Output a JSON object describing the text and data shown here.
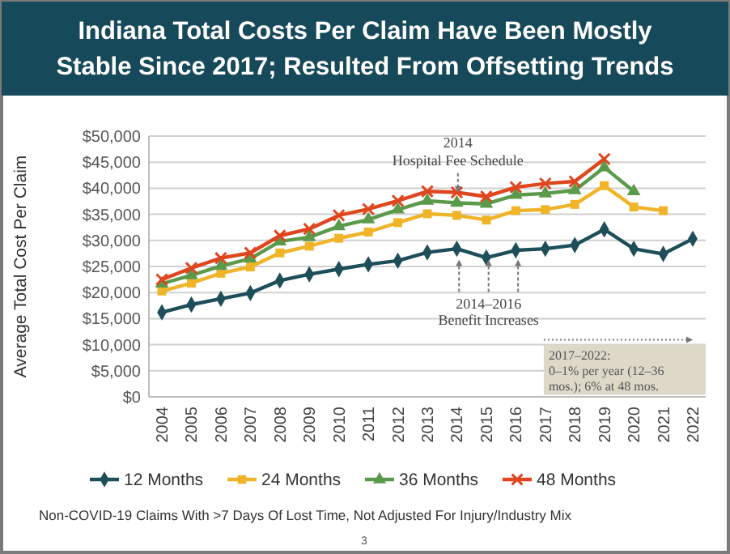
{
  "chart_data": {
    "type": "line",
    "title": "Indiana Total Costs Per Claim Have Been Mostly\nStable Since 2017; Resulted From Offsetting Trends",
    "ylabel": "Average Total Cost Per Claim",
    "categories": [
      "2004",
      "2005",
      "2006",
      "2007",
      "2008",
      "2009",
      "2010",
      "2011",
      "2012",
      "2013",
      "2014",
      "2015",
      "2016",
      "2017",
      "2018",
      "2019",
      "2020",
      "2021",
      "2022"
    ],
    "series": [
      {
        "name": "12 Months",
        "color": "#1d4e5a",
        "marker": "diamond",
        "values": [
          16200,
          17700,
          18800,
          19900,
          22300,
          23500,
          24500,
          25400,
          26100,
          27700,
          28400,
          26700,
          28100,
          28400,
          29100,
          32100,
          28400,
          27400,
          30300
        ]
      },
      {
        "name": "24 Months",
        "color": "#f0b429",
        "marker": "square",
        "values": [
          20300,
          21800,
          23700,
          24900,
          27600,
          28900,
          30400,
          31600,
          33400,
          35100,
          34800,
          33900,
          35700,
          35900,
          36900,
          40500,
          36400,
          35700,
          null
        ]
      },
      {
        "name": "36 Months",
        "color": "#5a9a4a",
        "marker": "triangle",
        "values": [
          21700,
          23300,
          25100,
          26500,
          29800,
          30600,
          32700,
          34000,
          35900,
          37600,
          37200,
          37000,
          38700,
          39000,
          39600,
          44000,
          39400,
          null,
          null
        ]
      },
      {
        "name": "48 Months",
        "color": "#e0461e",
        "marker": "cross",
        "values": [
          22500,
          24700,
          26600,
          27600,
          30900,
          32200,
          34800,
          36000,
          37600,
          39400,
          39200,
          38400,
          40200,
          40900,
          41300,
          45600,
          null,
          null,
          null
        ]
      }
    ],
    "ylim": [
      0,
      50000
    ],
    "yticks": [
      {
        "value": 0,
        "label": "$0"
      },
      {
        "value": 5000,
        "label": "$5,000"
      },
      {
        "value": 10000,
        "label": "$10,000"
      },
      {
        "value": 15000,
        "label": "$15,000"
      },
      {
        "value": 20000,
        "label": "$20,000"
      },
      {
        "value": 25000,
        "label": "$25,000"
      },
      {
        "value": 30000,
        "label": "$30,000"
      },
      {
        "value": 35000,
        "label": "$35,000"
      },
      {
        "value": 40000,
        "label": "$40,000"
      },
      {
        "value": 45000,
        "label": "$45,000"
      },
      {
        "value": 50000,
        "label": "$50,000"
      }
    ],
    "grid": "y",
    "legend": "bottom",
    "annotations": [
      "2014\nHospital Fee Schedule",
      "2014–2016\nBenefit Increases",
      "2017–2022:\n0–1% per year (12–36\nmos.); 6% at 48 mos.",
      "Non-COVID-19 Claims With >7 Days Of Lost Time, Not Adjusted For Injury/Industry Mix",
      "3"
    ]
  }
}
